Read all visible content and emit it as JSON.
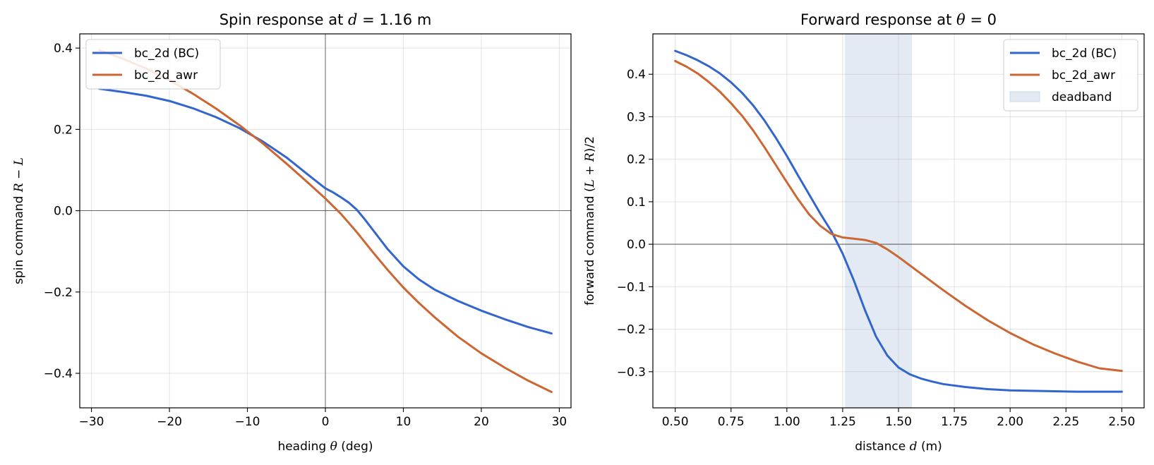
{
  "chart_data": [
    {
      "type": "line",
      "title_prefix": "Spin response at ",
      "title_var": "d",
      "title_suffix": " = 1.16 m",
      "xlabel_prefix": "heading ",
      "xlabel_var": "θ",
      "xlabel_suffix": " (deg)",
      "ylabel_prefix": "spin command ",
      "ylabel_var": "R − L",
      "xlim": [
        -31.5,
        31.5
      ],
      "ylim": [
        -0.485,
        0.435
      ],
      "xticks": [
        -30,
        -20,
        -10,
        0,
        10,
        20,
        30
      ],
      "xtick_labels": [
        "−30",
        "−20",
        "−10",
        "0",
        "10",
        "20",
        "30"
      ],
      "yticks": [
        -0.4,
        -0.2,
        0.0,
        0.2,
        0.4
      ],
      "ytick_labels": [
        "−0.4",
        "−0.2",
        "0.0",
        "0.2",
        "0.4"
      ],
      "grid": true,
      "zero_lines": {
        "x": 0,
        "y": 0
      },
      "legend_position": "upper-left",
      "series": [
        {
          "name": "bc_2d (BC)",
          "color": "#3366cc",
          "x": [
            -29,
            -26,
            -23,
            -20,
            -17,
            -14,
            -11,
            -8,
            -5,
            -2,
            0,
            1,
            2,
            3,
            4,
            5,
            6,
            8,
            10,
            12,
            14,
            17,
            20,
            23,
            26,
            29
          ],
          "y": [
            0.3,
            0.292,
            0.283,
            0.27,
            0.252,
            0.23,
            0.203,
            0.17,
            0.131,
            0.085,
            0.055,
            0.045,
            0.033,
            0.02,
            0.003,
            -0.02,
            -0.045,
            -0.095,
            -0.137,
            -0.169,
            -0.194,
            -0.222,
            -0.246,
            -0.267,
            -0.286,
            -0.302
          ]
        },
        {
          "name": "bc_2d_awr",
          "color": "#cc6633",
          "x": [
            -29,
            -26,
            -23,
            -20,
            -17,
            -14,
            -11,
            -8,
            -5,
            -2,
            0,
            2,
            4,
            6,
            8,
            10,
            12,
            14,
            17,
            20,
            23,
            26,
            29
          ],
          "y": [
            0.395,
            0.374,
            0.35,
            0.321,
            0.288,
            0.251,
            0.21,
            0.165,
            0.116,
            0.065,
            0.03,
            -0.008,
            -0.052,
            -0.1,
            -0.146,
            -0.189,
            -0.227,
            -0.262,
            -0.31,
            -0.351,
            -0.386,
            -0.418,
            -0.446
          ]
        }
      ]
    },
    {
      "type": "line",
      "title_prefix": "Forward response at ",
      "title_var": "θ",
      "title_suffix": " = 0",
      "xlabel_prefix": "distance ",
      "xlabel_var": "d",
      "xlabel_suffix": " (m)",
      "ylabel_prefix": "forward command (",
      "ylabel_var": "L + R",
      "ylabel_suffix": ")/2",
      "xlim": [
        0.4,
        2.6
      ],
      "ylim": [
        -0.385,
        0.495
      ],
      "xticks": [
        0.5,
        0.75,
        1.0,
        1.25,
        1.5,
        1.75,
        2.0,
        2.25,
        2.5
      ],
      "xtick_labels": [
        "0.50",
        "0.75",
        "1.00",
        "1.25",
        "1.50",
        "1.75",
        "2.00",
        "2.25",
        "2.50"
      ],
      "yticks": [
        -0.3,
        -0.2,
        -0.1,
        0.0,
        0.1,
        0.2,
        0.3,
        0.4
      ],
      "ytick_labels": [
        "−0.3",
        "−0.2",
        "−0.1",
        "0.0",
        "0.1",
        "0.2",
        "0.3",
        "0.4"
      ],
      "grid": true,
      "zero_lines": {
        "y": 0
      },
      "legend_position": "upper-right",
      "deadband": {
        "name": "deadband",
        "x0": 1.26,
        "x1": 1.56,
        "color": "#b0c4de"
      },
      "series": [
        {
          "name": "bc_2d (BC)",
          "color": "#3366cc",
          "x": [
            0.5,
            0.55,
            0.6,
            0.65,
            0.7,
            0.75,
            0.8,
            0.85,
            0.9,
            0.95,
            1.0,
            1.05,
            1.1,
            1.15,
            1.2,
            1.25,
            1.3,
            1.35,
            1.4,
            1.45,
            1.5,
            1.55,
            1.6,
            1.65,
            1.7,
            1.8,
            1.9,
            2.0,
            2.1,
            2.2,
            2.3,
            2.4,
            2.5
          ],
          "y": [
            0.455,
            0.445,
            0.433,
            0.419,
            0.402,
            0.381,
            0.356,
            0.326,
            0.291,
            0.251,
            0.208,
            0.162,
            0.117,
            0.072,
            0.03,
            -0.022,
            -0.085,
            -0.155,
            -0.218,
            -0.262,
            -0.29,
            -0.306,
            -0.316,
            -0.323,
            -0.329,
            -0.336,
            -0.341,
            -0.344,
            -0.345,
            -0.346,
            -0.347,
            -0.347,
            -0.347
          ]
        },
        {
          "name": "bc_2d_awr",
          "color": "#cc6633",
          "x": [
            0.5,
            0.55,
            0.6,
            0.65,
            0.7,
            0.75,
            0.8,
            0.85,
            0.9,
            0.95,
            1.0,
            1.05,
            1.1,
            1.15,
            1.2,
            1.25,
            1.3,
            1.35,
            1.4,
            1.45,
            1.5,
            1.6,
            1.7,
            1.8,
            1.9,
            2.0,
            2.1,
            2.2,
            2.3,
            2.4,
            2.5
          ],
          "y": [
            0.431,
            0.418,
            0.402,
            0.382,
            0.359,
            0.332,
            0.302,
            0.267,
            0.228,
            0.187,
            0.146,
            0.106,
            0.07,
            0.043,
            0.024,
            0.016,
            0.013,
            0.01,
            0.003,
            -0.012,
            -0.03,
            -0.069,
            -0.108,
            -0.145,
            -0.179,
            -0.209,
            -0.235,
            -0.257,
            -0.276,
            -0.292,
            -0.298
          ]
        }
      ]
    }
  ]
}
